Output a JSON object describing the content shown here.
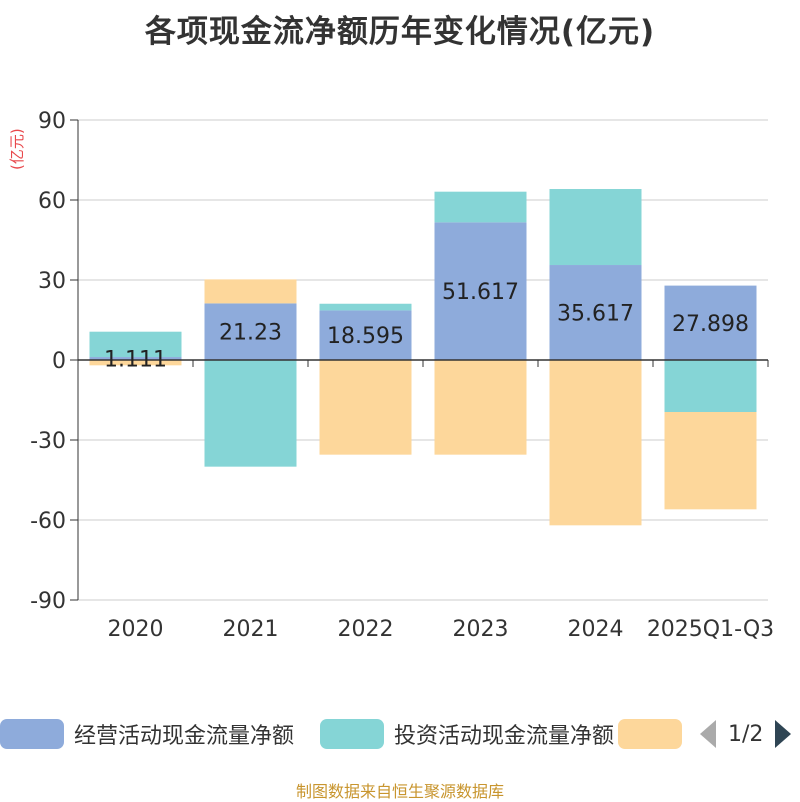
{
  "title": "各项现金流净额历年变化情况(亿元)",
  "unit_label": "(亿元)",
  "source": "制图数据来自恒生聚源数据库",
  "legend": {
    "items": [
      {
        "label": "经营活动现金流量净额",
        "color": "#8eabdb"
      },
      {
        "label": "投资活动现金流量净额",
        "color": "#85d5d6"
      },
      {
        "label": "",
        "color": "#fdd79b"
      }
    ],
    "page": "1/2"
  },
  "chart_data": {
    "type": "bar",
    "stacked": true,
    "categories": [
      "2020",
      "2021",
      "2022",
      "2023",
      "2024",
      "2025Q1-Q3"
    ],
    "ylim": [
      -90,
      90
    ],
    "yticks": [
      90,
      60,
      30,
      0,
      -30,
      -60,
      -90
    ],
    "series": [
      {
        "name": "经营活动现金流量净额",
        "color": "#8eabdb",
        "values": [
          1.111,
          21.23,
          18.595,
          51.617,
          35.617,
          27.898
        ]
      },
      {
        "name": "投资活动现金流量净额",
        "color": "#85d5d6",
        "values": [
          9.5,
          -40,
          2.5,
          11.5,
          28.5,
          -19.5
        ]
      },
      {
        "name": "",
        "color": "#fdd79b",
        "values": [
          -2,
          9,
          -35.5,
          -35.5,
          -62,
          -36.5
        ]
      }
    ],
    "data_labels": [
      "1.111",
      "21.23",
      "18.595",
      "51.617",
      "35.617",
      "27.898"
    ]
  }
}
